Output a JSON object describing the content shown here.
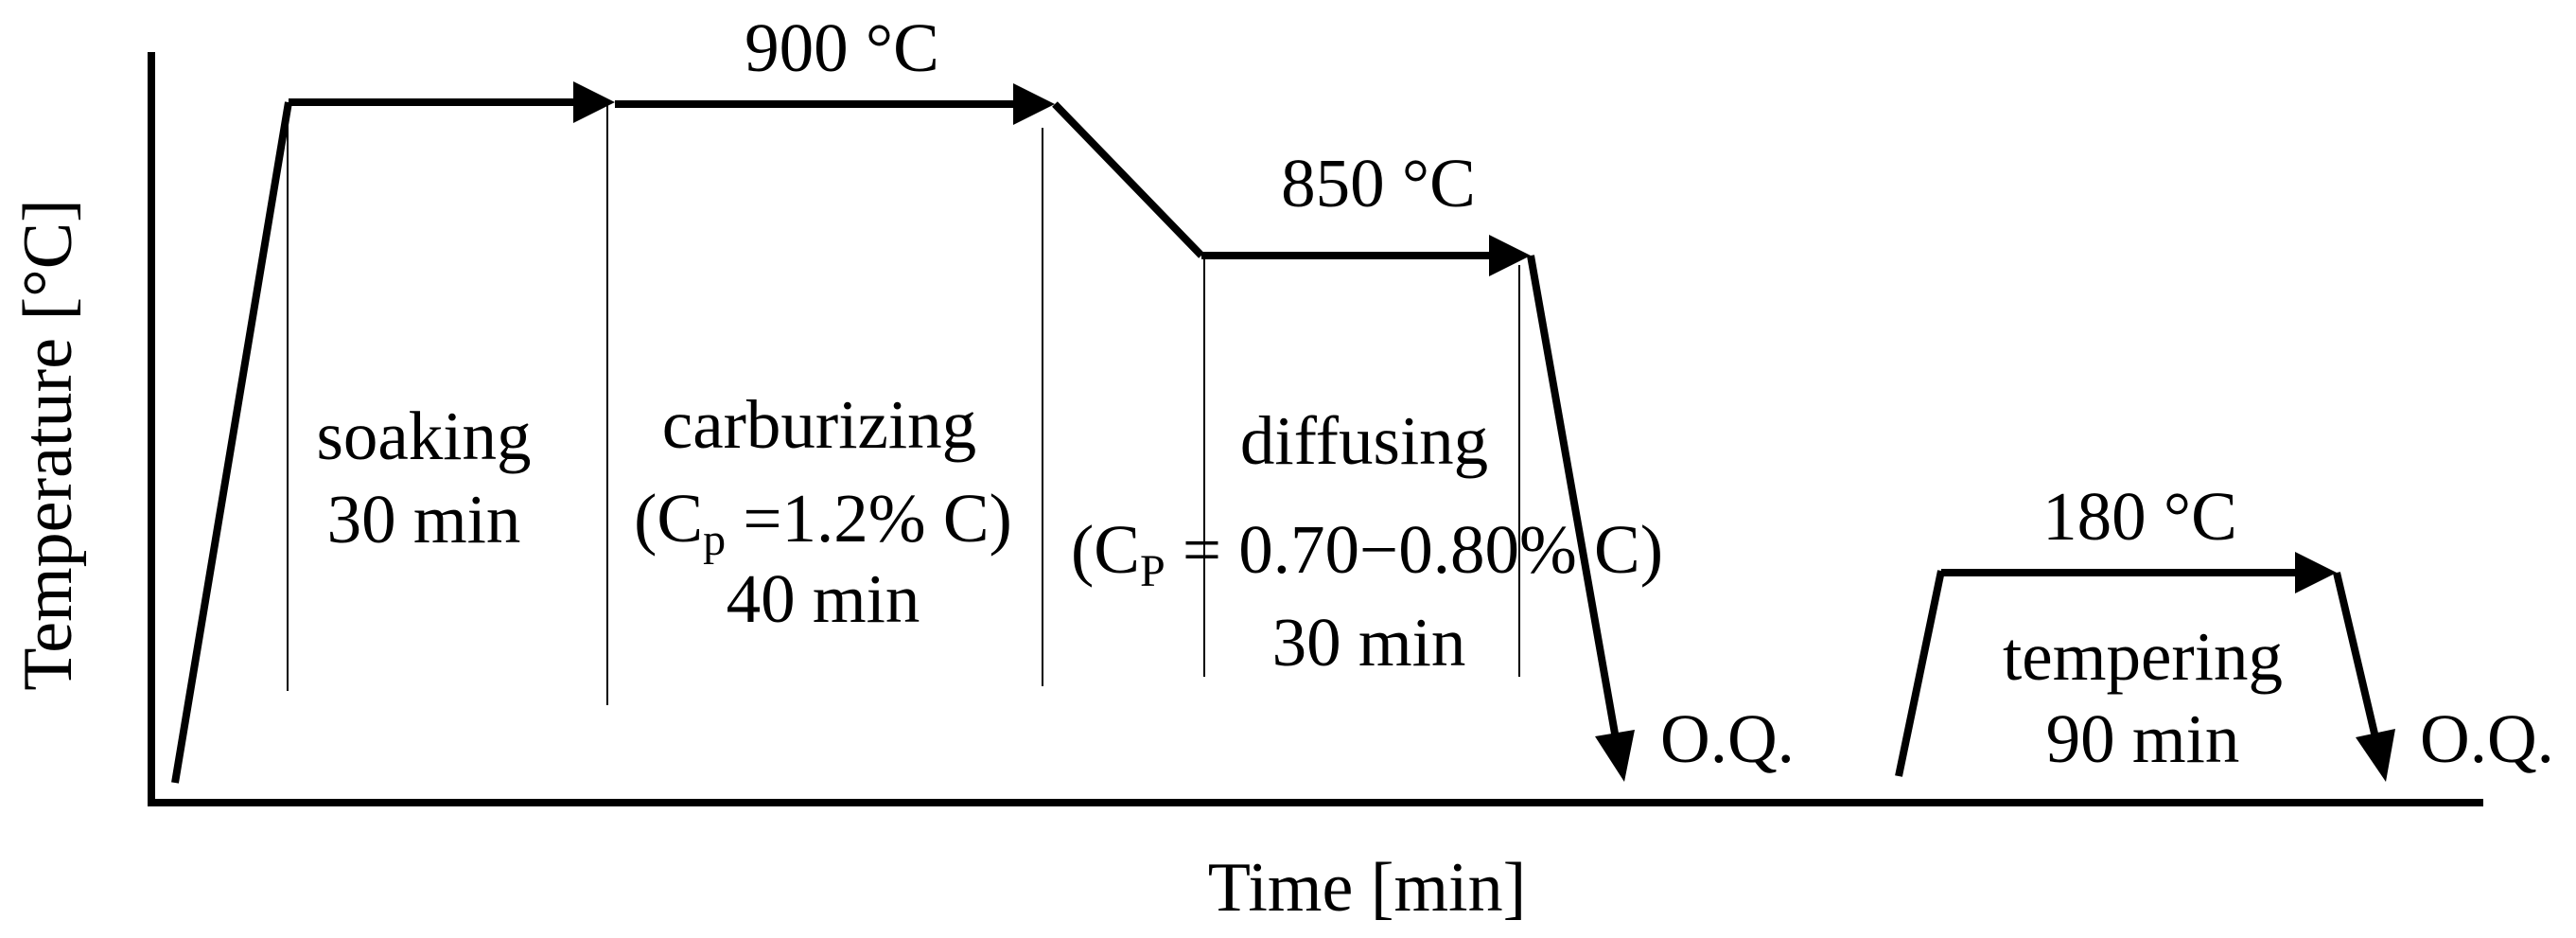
{
  "axes": {
    "x_label": "Time [min]",
    "y_label": "Temperature [°C]"
  },
  "temperatures": {
    "carburizing": "900 °C",
    "diffusing": "850 °C",
    "tempering": "180 °C"
  },
  "stages": {
    "soaking": {
      "name": "soaking",
      "duration": "30 min"
    },
    "carburizing": {
      "name": "carburizing",
      "cp_prefix": "(C",
      "cp_sub": "p",
      "cp_value": " =1.2% C)",
      "duration": "40 min"
    },
    "diffusing": {
      "name": "diffusing",
      "cp_prefix": "(C",
      "cp_sub": "P",
      "cp_value": " = 0.70−0.80% C)",
      "duration": "30 min"
    },
    "tempering": {
      "name": "tempering",
      "duration": "90 min"
    }
  },
  "quench": {
    "first": "O.Q.",
    "second": "O.Q."
  }
}
